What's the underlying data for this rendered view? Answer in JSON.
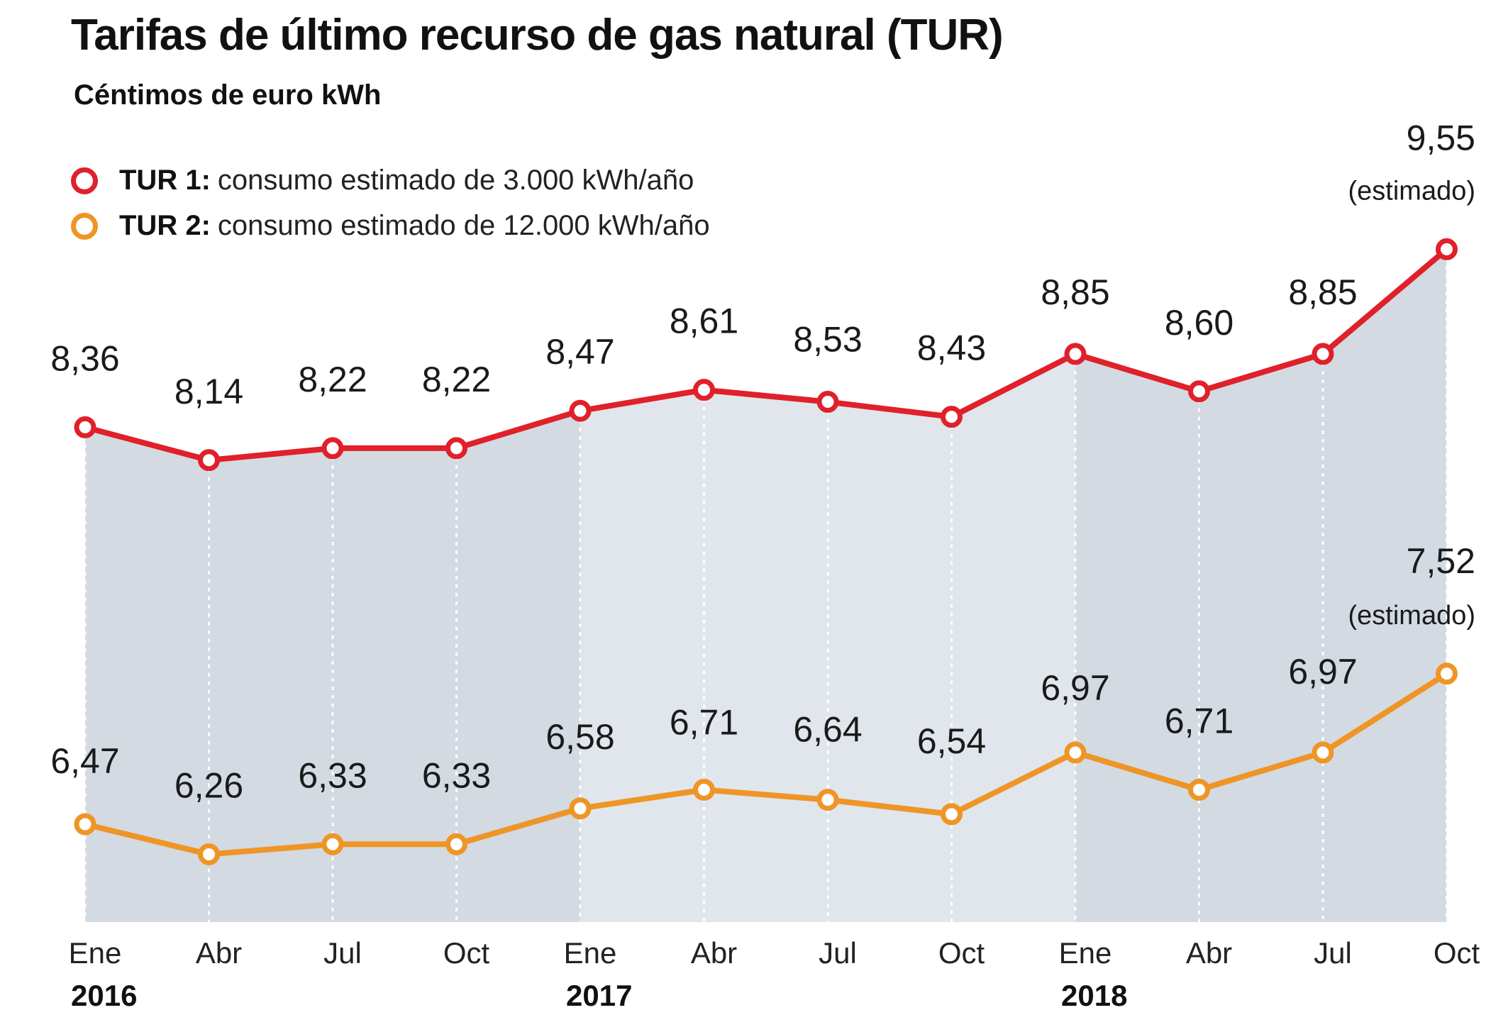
{
  "chart_data": {
    "type": "line",
    "title": "Tarifas de último recurso de gas natural (TUR)",
    "subtitle": "Céntimos de euro kWh",
    "categories": [
      "Ene",
      "Abr",
      "Jul",
      "Oct",
      "Ene",
      "Abr",
      "Jul",
      "Oct",
      "Ene",
      "Abr",
      "Jul",
      "Oct"
    ],
    "years": [
      {
        "label": "2016",
        "start_index": 0
      },
      {
        "label": "2017",
        "start_index": 4
      },
      {
        "label": "2018",
        "start_index": 8
      }
    ],
    "series": [
      {
        "name": "TUR 1",
        "description": "consumo estimado de 3.000 kWh/año",
        "color": "#e0202a",
        "values": [
          8.36,
          8.14,
          8.22,
          8.22,
          8.47,
          8.61,
          8.53,
          8.43,
          8.85,
          8.6,
          8.85,
          9.55
        ],
        "labels": [
          "8,36",
          "8,14",
          "8,22",
          "8,22",
          "8,47",
          "8,61",
          "8,53",
          "8,43",
          "8,85",
          "8,60",
          "8,85",
          "9,55"
        ]
      },
      {
        "name": "TUR 2",
        "description": "consumo estimado de 12.000 kWh/año",
        "color": "#ef9526",
        "values": [
          6.47,
          6.26,
          6.33,
          6.33,
          6.58,
          6.71,
          6.64,
          6.54,
          6.97,
          6.71,
          6.97,
          7.52
        ],
        "labels": [
          "6,47",
          "6,26",
          "6,33",
          "6,33",
          "6,58",
          "6,71",
          "6,64",
          "6,54",
          "6,97",
          "6,71",
          "6,97",
          "7,52"
        ]
      }
    ],
    "annotations": [
      {
        "series": 0,
        "index": 11,
        "text": "(estimado)"
      },
      {
        "series": 1,
        "index": 11,
        "text": "(estimado)"
      }
    ],
    "area_colors": [
      "#d3dae2",
      "#e0e6eb",
      "#d3dae2"
    ],
    "grid": "vertical-dotted",
    "legend_position": "top-left"
  }
}
